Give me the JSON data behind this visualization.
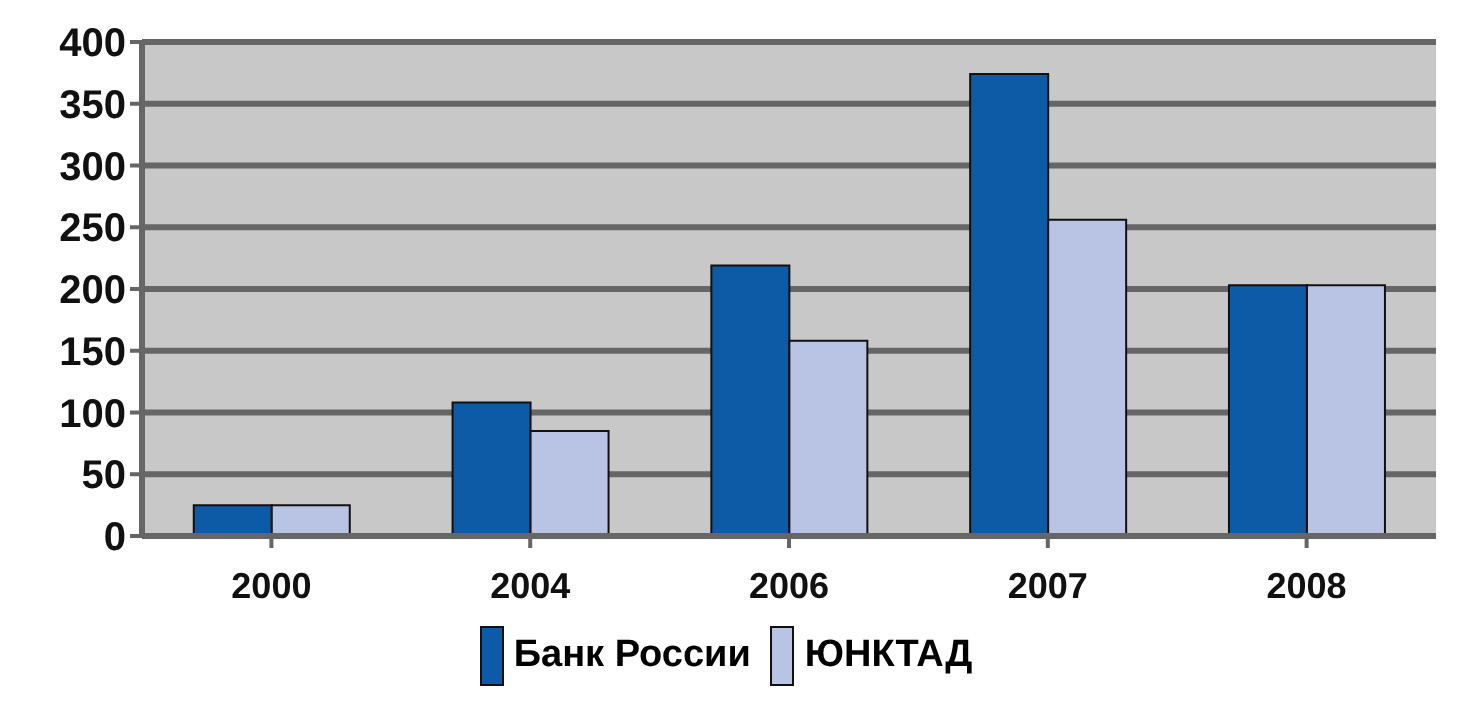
{
  "chart_data": {
    "type": "bar",
    "categories": [
      "2000",
      "2004",
      "2006",
      "2007",
      "2008"
    ],
    "series": [
      {
        "name": "Банк России",
        "color": "#0d5aa7",
        "values": [
          25,
          108,
          219,
          374,
          203
        ]
      },
      {
        "name": "ЮНКТАД",
        "color": "#b9c3e3",
        "values": [
          25,
          85,
          158,
          256,
          203
        ]
      }
    ],
    "ylim": [
      0,
      400
    ],
    "yticks": [
      0,
      50,
      100,
      150,
      200,
      250,
      300,
      350,
      400
    ],
    "grid": "y",
    "legend": "bottom"
  }
}
